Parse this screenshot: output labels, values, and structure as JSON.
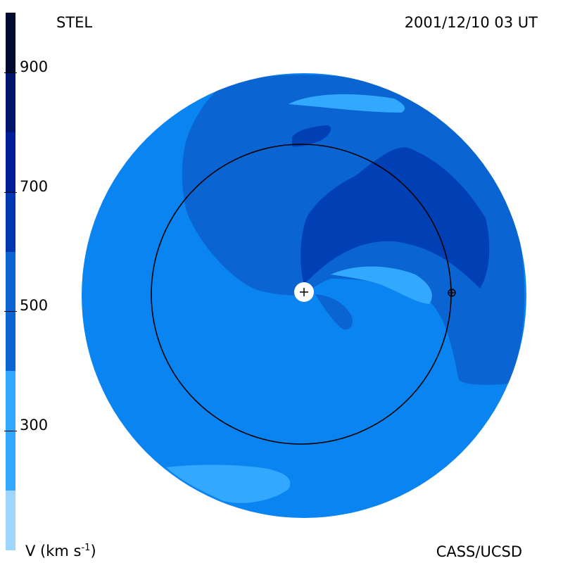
{
  "labels": {
    "top_left": "STEL",
    "top_right": "2001/12/10 03 UT",
    "bottom_left_prefix": "V (km s",
    "bottom_left_sup": "-1",
    "bottom_left_suffix": ")",
    "bottom_right": "CASS/UCSD"
  },
  "scale": {
    "ticks": [
      "900",
      "700",
      "500",
      "300"
    ],
    "tick_values": [
      900,
      700,
      500,
      300
    ],
    "min": 100,
    "max": 1000,
    "bands": [
      {
        "from": 100,
        "to": 200,
        "color": "#9fd6ff"
      },
      {
        "from": 200,
        "to": 400,
        "color": "#33a8ff"
      },
      {
        "from": 400,
        "to": 600,
        "color": "#0a64d2"
      },
      {
        "from": 600,
        "to": 700,
        "color": "#0036b0"
      },
      {
        "from": 700,
        "to": 800,
        "color": "#001d98"
      },
      {
        "from": 800,
        "to": 900,
        "color": "#00146e"
      },
      {
        "from": 900,
        "to": 1000,
        "color": "#000a30"
      }
    ]
  },
  "colors": {
    "disk_base": "#0a84f0",
    "region_mid": "#0a64d2",
    "region_dark": "#0040b4",
    "region_light": "#33a8ff",
    "orbit": "#000000",
    "sun": "#ffffff"
  },
  "icons": {
    "sun": "sun-marker-icon",
    "earth": "earth-marker-icon"
  }
}
